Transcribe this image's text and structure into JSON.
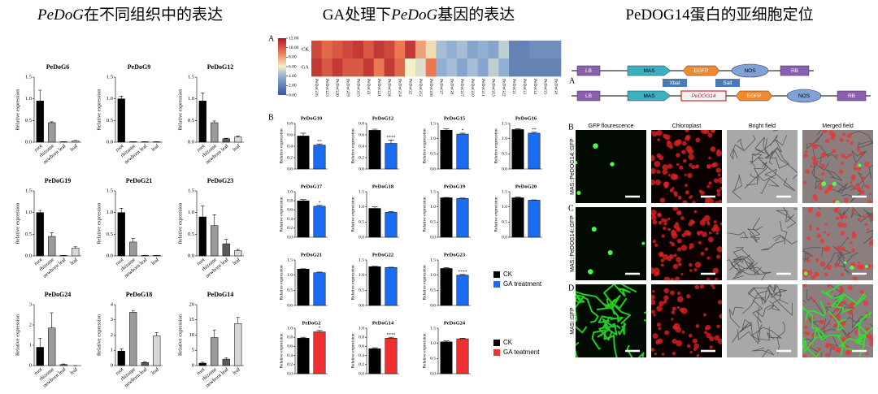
{
  "headings": [
    {
      "parts": [
        {
          "text": "PeDoG",
          "italic": true
        },
        {
          "text": "在不同组织中的表达"
        }
      ]
    },
    {
      "parts": [
        {
          "text": "GA处理下"
        },
        {
          "text": "PeDoG",
          "italic": true
        },
        {
          "text": "基因的表达"
        }
      ]
    },
    {
      "parts": [
        {
          "text": "PeDOG14蛋白的亚细胞定位"
        }
      ]
    }
  ],
  "panel_letters": {
    "ga_heatmap": "A",
    "ga_bars": "B",
    "construct": "A",
    "row_b": "B",
    "row_c": "C",
    "row_d": "D"
  },
  "chart_data": [
    {
      "type": "bar",
      "title": "PeDoG6",
      "ylabel": "Relative expression",
      "categories": [
        "root",
        "rhizome",
        "newborn leaf",
        "leaf"
      ],
      "values": [
        0.95,
        0.45,
        0.01,
        0.03
      ],
      "errors": [
        0.25,
        0.02,
        0,
        0.01
      ],
      "colors": [
        "#000000",
        "#9a9a9a",
        "#5a5a5a",
        "#d8d8d8"
      ],
      "ylim": [
        0,
        1.5
      ],
      "yticks": [
        {
          "value": 0,
          "label": "0.0"
        },
        {
          "value": 0.5,
          "label": "0.5"
        },
        {
          "value": 1,
          "label": "1.0"
        },
        {
          "value": 1.5,
          "label": "1.5"
        }
      ]
    },
    {
      "type": "bar",
      "title": "PeDoG9",
      "ylabel": "Relative expression",
      "categories": [
        "root",
        "rhizome",
        "newborn leaf",
        "leaf"
      ],
      "values": [
        1.0,
        0.01,
        0.01,
        0.01
      ],
      "errors": [
        0.06,
        0,
        0,
        0
      ],
      "colors": [
        "#000000",
        "#9a9a9a",
        "#5a5a5a",
        "#d8d8d8"
      ],
      "ylim": [
        0,
        1.5
      ],
      "yticks": [
        {
          "value": 0,
          "label": "0.0"
        },
        {
          "value": 0.5,
          "label": "0.5"
        },
        {
          "value": 1,
          "label": "1.0"
        },
        {
          "value": 1.5,
          "label": "1.5"
        }
      ]
    },
    {
      "type": "bar",
      "title": "PeDoG12",
      "ylabel": "Relative expression",
      "categories": [
        "root",
        "rhizome",
        "newborn leaf",
        "leaf"
      ],
      "values": [
        0.95,
        0.45,
        0.08,
        0.12
      ],
      "errors": [
        0.18,
        0.04,
        0.01,
        0.02
      ],
      "colors": [
        "#000000",
        "#9a9a9a",
        "#5a5a5a",
        "#d8d8d8"
      ],
      "ylim": [
        0,
        1.5
      ],
      "yticks": [
        {
          "value": 0,
          "label": "0.0"
        },
        {
          "value": 0.5,
          "label": "0.5"
        },
        {
          "value": 1,
          "label": "1.0"
        },
        {
          "value": 1.5,
          "label": "1.5"
        }
      ]
    },
    {
      "type": "bar",
      "title": "PeDoG19",
      "ylabel": "Relative expression",
      "categories": [
        "root",
        "rhizome",
        "newborn leaf",
        "leaf"
      ],
      "values": [
        1.0,
        0.45,
        0.01,
        0.18
      ],
      "errors": [
        0.05,
        0.08,
        0,
        0.03
      ],
      "colors": [
        "#000000",
        "#9a9a9a",
        "#5a5a5a",
        "#d8d8d8"
      ],
      "ylim": [
        0,
        1.5
      ],
      "yticks": [
        {
          "value": 0,
          "label": "0.0"
        },
        {
          "value": 0.5,
          "label": "0.5"
        },
        {
          "value": 1,
          "label": "1.0"
        },
        {
          "value": 1.5,
          "label": "1.5"
        }
      ]
    },
    {
      "type": "bar",
      "title": "PeDoG21",
      "ylabel": "Relative expression",
      "categories": [
        "root",
        "rhizome",
        "newborn leaf",
        "leaf"
      ],
      "values": [
        1.0,
        0.32,
        0.01,
        0.01
      ],
      "errors": [
        0.1,
        0.08,
        0,
        0
      ],
      "colors": [
        "#000000",
        "#9a9a9a",
        "#5a5a5a",
        "#d8d8d8"
      ],
      "ylim": [
        0,
        1.5
      ],
      "yticks": [
        {
          "value": 0,
          "label": "0.0"
        },
        {
          "value": 0.5,
          "label": "0.5"
        },
        {
          "value": 1,
          "label": "1.0"
        },
        {
          "value": 1.5,
          "label": "1.5"
        }
      ]
    },
    {
      "type": "bar",
      "title": "PeDoG23",
      "ylabel": "Relative expression",
      "categories": [
        "root",
        "rhizome",
        "newborn leaf",
        "leaf"
      ],
      "values": [
        0.9,
        0.7,
        0.28,
        0.12
      ],
      "errors": [
        0.25,
        0.25,
        0.1,
        0.03
      ],
      "colors": [
        "#000000",
        "#9a9a9a",
        "#5a5a5a",
        "#d8d8d8"
      ],
      "ylim": [
        0,
        1.5
      ],
      "yticks": [
        {
          "value": 0,
          "label": "0.0"
        },
        {
          "value": 0.5,
          "label": "0.5"
        },
        {
          "value": 1,
          "label": "1.0"
        },
        {
          "value": 1.5,
          "label": "1.5"
        }
      ]
    },
    {
      "type": "bar",
      "title": "PeDoG24",
      "ylabel": "Relative expression",
      "categories": [
        "root",
        "rhizome",
        "newborn leaf",
        "leaf"
      ],
      "values": [
        0.9,
        1.85,
        0.05,
        0
      ],
      "errors": [
        0.45,
        0.75,
        0.03,
        0
      ],
      "colors": [
        "#000000",
        "#9a9a9a",
        "#5a5a5a",
        "#d8d8d8"
      ],
      "ylim": [
        0,
        3
      ],
      "yticks": [
        0,
        1,
        2,
        3
      ]
    },
    {
      "type": "bar",
      "title": "PeDoG18",
      "ylabel": "Relative expression",
      "categories": [
        "root",
        "rhizome",
        "newborn leaf",
        "leaf"
      ],
      "values": [
        0.95,
        3.5,
        0.2,
        1.95
      ],
      "errors": [
        0.15,
        0.12,
        0.03,
        0.2
      ],
      "colors": [
        "#000000",
        "#9a9a9a",
        "#5a5a5a",
        "#d8d8d8"
      ],
      "ylim": [
        0,
        4
      ],
      "yticks": [
        0,
        1,
        2,
        3,
        4
      ]
    },
    {
      "type": "bar",
      "title": "PeDoG14",
      "ylabel": "Relative expression",
      "categories": [
        "root",
        "rhizome",
        "newborn leaf",
        "leaf"
      ],
      "values": [
        0.8,
        9.2,
        2.1,
        13.8
      ],
      "errors": [
        0.3,
        2.5,
        0.5,
        2
      ],
      "colors": [
        "#000000",
        "#9a9a9a",
        "#5a5a5a",
        "#d8d8d8"
      ],
      "ylim": [
        0,
        20
      ],
      "yticks": [
        0,
        5,
        10,
        15,
        20
      ]
    },
    {
      "type": "heatmap",
      "categories": [
        "PeDoG16",
        "PeDoG23",
        "PeDoG20",
        "PeDoG19",
        "PeDoG15",
        "PeDoG9",
        "PeDoG21",
        "PeDoG24",
        "PeDoG14",
        "PeDoG2",
        "PeDoG12",
        "PeDoG18",
        "PeDoG7",
        "PeDoG8",
        "PeDoG17",
        "PeDoG10",
        "PeDoG11",
        "PeDoG13",
        "PeDoG22",
        "PeDoG1",
        "PeDoG3",
        "PeDoG4",
        "PeDoG5",
        "PeDoG6"
      ],
      "series": [
        {
          "name": "CK",
          "values": [
            10.5,
            9.5,
            10,
            10.5,
            11,
            10,
            11,
            10.5,
            9,
            11,
            8,
            6.5,
            4.5,
            4,
            4.5,
            3.5,
            4,
            3.5,
            5,
            2,
            2,
            2.5,
            2.5,
            2.5
          ]
        },
        {
          "name": "GA",
          "values": [
            11,
            10,
            11,
            10,
            10,
            11,
            9,
            11,
            9.5,
            6,
            5.5,
            9,
            4,
            4.5,
            3.5,
            4.5,
            3.5,
            5,
            4,
            2,
            2,
            2,
            2,
            2
          ]
        }
      ],
      "zlim": [
        0,
        12
      ],
      "zticks": [
        {
          "value": 12,
          "label": "12.00"
        },
        {
          "value": 10,
          "label": "10.00"
        },
        {
          "value": 8,
          "label": "8.00"
        },
        {
          "value": 6,
          "label": "6.00"
        },
        {
          "value": 4,
          "label": "4.00"
        },
        {
          "value": 2,
          "label": "2.00"
        },
        {
          "value": 0,
          "label": "0.00"
        }
      ]
    },
    {
      "type": "bar",
      "title": "PeDoG10",
      "ylabel": "Relative expression",
      "values": [
        0.58,
        0.42
      ],
      "errors": [
        0.05,
        0.02
      ],
      "annotation": "**",
      "colors": [
        "#000000",
        "#1a6cf0"
      ],
      "ylim": [
        0,
        0.8
      ],
      "yticks": [
        {
          "value": 0,
          "label": "0.0"
        },
        {
          "value": 0.2,
          "label": "0.2"
        },
        {
          "value": 0.4,
          "label": "0.4"
        },
        {
          "value": 0.6,
          "label": "0.6"
        },
        {
          "value": 0.8,
          "label": "0.8"
        }
      ]
    },
    {
      "type": "bar",
      "title": "PeDoG12",
      "ylabel": "Relative expression",
      "values": [
        0.68,
        0.45
      ],
      "errors": [
        0.02,
        0.06
      ],
      "annotation": "****",
      "colors": [
        "#000000",
        "#1a6cf0"
      ],
      "ylim": [
        0,
        0.8
      ],
      "yticks": [
        {
          "value": 0,
          "label": "0.0"
        },
        {
          "value": 0.2,
          "label": "0.2"
        },
        {
          "value": 0.4,
          "label": "0.4"
        },
        {
          "value": 0.6,
          "label": "0.6"
        },
        {
          "value": 0.8,
          "label": "0.8"
        }
      ]
    },
    {
      "type": "bar",
      "title": "PeDoG15",
      "ylabel": "Relative expression",
      "values": [
        1.28,
        1.15
      ],
      "errors": [
        0.04,
        0.03
      ],
      "annotation": "*",
      "colors": [
        "#000000",
        "#1a6cf0"
      ],
      "ylim": [
        0,
        1.5
      ],
      "yticks": [
        {
          "value": 0,
          "label": "0.0"
        },
        {
          "value": 0.5,
          "label": "0.5"
        },
        {
          "value": 1,
          "label": "1.0"
        },
        {
          "value": 1.5,
          "label": "1.5"
        }
      ]
    },
    {
      "type": "bar",
      "title": "PeDoG16",
      "ylabel": "Relative expression",
      "values": [
        1.3,
        1.18
      ],
      "errors": [
        0.02,
        0.03
      ],
      "annotation": "**",
      "colors": [
        "#000000",
        "#1a6cf0"
      ],
      "ylim": [
        0,
        1.5
      ],
      "yticks": [
        {
          "value": 0,
          "label": "0.0"
        },
        {
          "value": 0.5,
          "label": "0.5"
        },
        {
          "value": 1,
          "label": "1.0"
        },
        {
          "value": 1.5,
          "label": "1.5"
        }
      ]
    },
    {
      "type": "bar",
      "title": "PeDoG17",
      "ylabel": "Relative expression",
      "values": [
        0.8,
        0.68
      ],
      "errors": [
        0.03,
        0.02
      ],
      "annotation": "*",
      "colors": [
        "#000000",
        "#1a6cf0"
      ],
      "ylim": [
        0,
        1
      ],
      "yticks": [
        {
          "value": 0,
          "label": "0.0"
        },
        {
          "value": 0.2,
          "label": "0.2"
        },
        {
          "value": 0.4,
          "label": "0.4"
        },
        {
          "value": 0.6,
          "label": "0.6"
        },
        {
          "value": 0.8,
          "label": "0.8"
        },
        {
          "value": 1,
          "label": "1.0"
        }
      ]
    },
    {
      "type": "bar",
      "title": "PeDoG18",
      "ylabel": "Relative expression",
      "values": [
        0.95,
        0.82
      ],
      "errors": [
        0.05,
        0.03
      ],
      "colors": [
        "#000000",
        "#1a6cf0"
      ],
      "ylim": [
        0,
        1.5
      ],
      "yticks": [
        {
          "value": 0,
          "label": "0.0"
        },
        {
          "value": 0.5,
          "label": "0.5"
        },
        {
          "value": 1,
          "label": "1.0"
        },
        {
          "value": 1.5,
          "label": "1.5"
        }
      ]
    },
    {
      "type": "bar",
      "title": "PeDoG19",
      "ylabel": "Relative expression",
      "values": [
        1.3,
        1.28
      ],
      "errors": [
        0.01,
        0.01
      ],
      "colors": [
        "#000000",
        "#1a6cf0"
      ],
      "ylim": [
        0,
        1.5
      ],
      "yticks": [
        {
          "value": 0,
          "label": "0.0"
        },
        {
          "value": 0.5,
          "label": "0.5"
        },
        {
          "value": 1,
          "label": "1.0"
        },
        {
          "value": 1.5,
          "label": "1.5"
        }
      ]
    },
    {
      "type": "bar",
      "title": "PeDoG20",
      "ylabel": "Relative expression",
      "values": [
        1.3,
        1.22
      ],
      "errors": [
        0.02,
        0.01
      ],
      "colors": [
        "#000000",
        "#1a6cf0"
      ],
      "ylim": [
        0,
        1.5
      ],
      "yticks": [
        {
          "value": 0,
          "label": "0.0"
        },
        {
          "value": 0.5,
          "label": "0.5"
        },
        {
          "value": 1,
          "label": "1.0"
        },
        {
          "value": 1.5,
          "label": "1.5"
        }
      ]
    },
    {
      "type": "bar",
      "title": "PeDoG21",
      "ylabel": "Relative expression",
      "values": [
        1.2,
        1.08
      ],
      "errors": [
        0.01,
        0.02
      ],
      "colors": [
        "#000000",
        "#1a6cf0"
      ],
      "ylim": [
        0,
        1.5
      ],
      "yticks": [
        {
          "value": 0,
          "label": "0.0"
        },
        {
          "value": 0.5,
          "label": "0.5"
        },
        {
          "value": 1,
          "label": "1.0"
        },
        {
          "value": 1.5,
          "label": "1.5"
        }
      ]
    },
    {
      "type": "bar",
      "title": "PeDoG22",
      "ylabel": "Relative expression",
      "values": [
        1.28,
        1.25
      ],
      "errors": [
        0.01,
        0.01
      ],
      "colors": [
        "#000000",
        "#1a6cf0"
      ],
      "ylim": [
        0,
        1.5
      ],
      "yticks": [
        {
          "value": 0,
          "label": "0.0"
        },
        {
          "value": 0.5,
          "label": "0.5"
        },
        {
          "value": 1,
          "label": "1.0"
        },
        {
          "value": 1.5,
          "label": "1.5"
        }
      ]
    },
    {
      "type": "bar",
      "title": "PeDoG23",
      "ylabel": "Relative expression",
      "values": [
        1.22,
        1.0
      ],
      "errors": [
        0.03,
        0.02
      ],
      "annotation": "****",
      "colors": [
        "#000000",
        "#1a6cf0"
      ],
      "ylim": [
        0,
        1.5
      ],
      "yticks": [
        {
          "value": 0,
          "label": "0.0"
        },
        {
          "value": 0.5,
          "label": "0.5"
        },
        {
          "value": 1,
          "label": "1.0"
        },
        {
          "value": 1.5,
          "label": "1.5"
        }
      ]
    },
    {
      "type": "bar",
      "title": "PeDoG2",
      "ylabel": "Relative expression",
      "values": [
        0.78,
        0.92
      ],
      "errors": [
        0.02,
        0.03
      ],
      "annotation": "*",
      "colors": [
        "#000000",
        "#f03030"
      ],
      "ylim": [
        0,
        1
      ],
      "yticks": [
        {
          "value": 0,
          "label": "0.0"
        },
        {
          "value": 0.2,
          "label": "0.2"
        },
        {
          "value": 0.4,
          "label": "0.4"
        },
        {
          "value": 0.6,
          "label": "0.6"
        },
        {
          "value": 0.8,
          "label": "0.8"
        },
        {
          "value": 1,
          "label": "1.0"
        }
      ]
    },
    {
      "type": "bar",
      "title": "PeDoG14",
      "ylabel": "Relative expression",
      "values": [
        0.55,
        0.78
      ],
      "errors": [
        0.02,
        0.02
      ],
      "annotation": "****",
      "colors": [
        "#000000",
        "#f03030"
      ],
      "ylim": [
        0,
        1
      ],
      "yticks": [
        {
          "value": 0,
          "label": "0.0"
        },
        {
          "value": 0.2,
          "label": "0.2"
        },
        {
          "value": 0.4,
          "label": "0.4"
        },
        {
          "value": 0.6,
          "label": "0.6"
        },
        {
          "value": 0.8,
          "label": "0.8"
        },
        {
          "value": 1,
          "label": "1.0"
        }
      ]
    },
    {
      "type": "bar",
      "title": "PeDoG24",
      "ylabel": "Relative expression",
      "values": [
        1.05,
        1.15
      ],
      "errors": [
        0.03,
        0.02
      ],
      "colors": [
        "#000000",
        "#f03030"
      ],
      "ylim": [
        0,
        1.5
      ],
      "yticks": [
        {
          "value": 0,
          "label": "0.0"
        },
        {
          "value": 0.5,
          "label": "0.5"
        },
        {
          "value": 1,
          "label": "1.0"
        },
        {
          "value": 1.5,
          "label": "1.5"
        }
      ]
    }
  ],
  "legends": [
    {
      "entries": [
        {
          "name": "CK",
          "color": "#000000"
        },
        {
          "name": "GA treatment",
          "color": "#1a6cf0"
        }
      ]
    },
    {
      "entries": [
        {
          "name": "CK",
          "color": "#000000"
        },
        {
          "name": "GA teatment",
          "color": "#f03030"
        }
      ]
    }
  ],
  "construct": {
    "rows": [
      [
        "LB",
        "MAS",
        "EGFP",
        "NOS",
        "RB"
      ],
      [
        "LB",
        "MAS",
        "PeDOG14",
        "EGFP",
        "NOS",
        "RB"
      ]
    ],
    "sites": [
      "XbaI",
      "SalI"
    ]
  },
  "microscopy": {
    "columns": [
      "GFP flourescence",
      "Chloroplast",
      "Bright field",
      "Merged field"
    ],
    "rows": [
      "MAS::PeDOG14::GFP",
      "MAS::PeDOG14::GFP",
      "MAS::GFP"
    ]
  }
}
